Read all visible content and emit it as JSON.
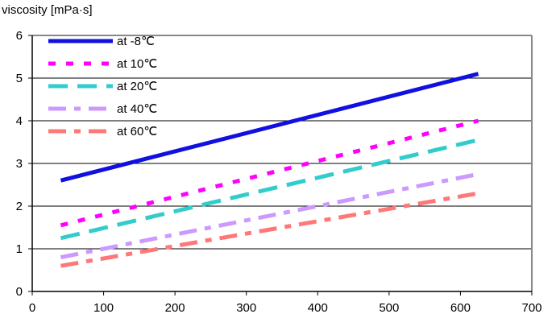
{
  "chart_data": {
    "type": "line",
    "ylabel": "viscosity [mPa·s]",
    "xlabel": "",
    "xlim": [
      0,
      700
    ],
    "ylim": [
      0,
      6
    ],
    "x_ticks": [
      "0",
      "100",
      "200",
      "300",
      "400",
      "500",
      "600",
      "700"
    ],
    "y_ticks": [
      "0",
      "1",
      "2",
      "3",
      "4",
      "5",
      "6"
    ],
    "grid": "horizontal",
    "legend_position": "top-left",
    "series": [
      {
        "name": "at -8℃",
        "color": "#1010e0",
        "dash": "solid",
        "x": [
          40,
          625
        ],
        "y": [
          2.6,
          5.1
        ]
      },
      {
        "name": "at 10℃",
        "color": "#ff00ff",
        "dash": "short",
        "x": [
          40,
          625
        ],
        "y": [
          1.55,
          4.0
        ]
      },
      {
        "name": "at 20℃",
        "color": "#33cccc",
        "dash": "long",
        "x": [
          40,
          625
        ],
        "y": [
          1.25,
          3.55
        ]
      },
      {
        "name": "at 40℃",
        "color": "#cc99ff",
        "dash": "dashdot",
        "x": [
          40,
          625
        ],
        "y": [
          0.8,
          2.75
        ]
      },
      {
        "name": "at 60℃",
        "color": "#ff7777",
        "dash": "dashdot",
        "x": [
          40,
          625
        ],
        "y": [
          0.6,
          2.3
        ]
      }
    ]
  }
}
